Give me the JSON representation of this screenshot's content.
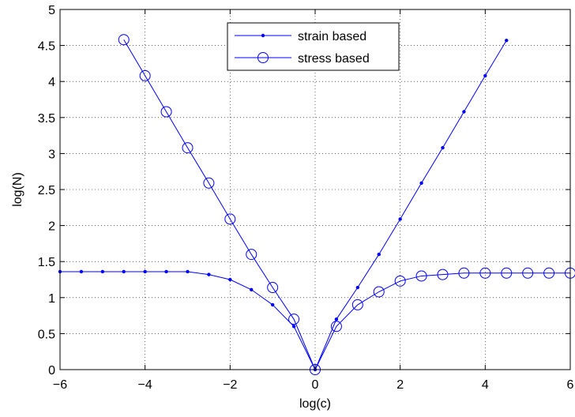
{
  "chart_data": {
    "type": "line",
    "xlabel": "log(c)",
    "ylabel": "log(N)",
    "xlim": [
      -6,
      6
    ],
    "ylim": [
      0,
      5
    ],
    "xticks": [
      -6,
      -4,
      -2,
      0,
      2,
      4,
      6
    ],
    "yticks": [
      0,
      0.5,
      1,
      1.5,
      2,
      2.5,
      3,
      3.5,
      4,
      4.5,
      5
    ],
    "xtick_labels": [
      "−6",
      "−4",
      "−2",
      "0",
      "2",
      "4",
      "6"
    ],
    "ytick_labels": [
      "0",
      "0.5",
      "1",
      "1.5",
      "2",
      "2.5",
      "3",
      "3.5",
      "4",
      "4.5",
      "5"
    ],
    "grid": true,
    "legend_position": "top-center",
    "line_color": "#0000ff",
    "series": [
      {
        "name": "strain based",
        "marker": "dot",
        "x": [
          -6,
          -5.5,
          -5,
          -4.5,
          -4,
          -3.5,
          -3,
          -2.5,
          -2,
          -1.5,
          -1,
          -0.5,
          0,
          0.5,
          1,
          1.5,
          2,
          2.5,
          3,
          3.5,
          4,
          4.5
        ],
        "y": [
          1.36,
          1.36,
          1.36,
          1.36,
          1.36,
          1.36,
          1.36,
          1.32,
          1.25,
          1.11,
          0.9,
          0.6,
          0.0,
          0.7,
          1.14,
          1.6,
          2.09,
          2.59,
          3.08,
          3.58,
          4.08,
          4.57
        ]
      },
      {
        "name": "stress based",
        "marker": "circle",
        "x": [
          -4.5,
          -4,
          -3.5,
          -3,
          -2.5,
          -2,
          -1.5,
          -1,
          -0.5,
          0,
          0.5,
          1,
          1.5,
          2,
          2.5,
          3,
          3.5,
          4,
          4.5,
          5,
          5.5,
          6
        ],
        "y": [
          4.58,
          4.08,
          3.58,
          3.08,
          2.59,
          2.09,
          1.6,
          1.14,
          0.7,
          0.0,
          0.6,
          0.9,
          1.08,
          1.23,
          1.3,
          1.32,
          1.34,
          1.34,
          1.34,
          1.34,
          1.34,
          1.34
        ]
      }
    ]
  }
}
